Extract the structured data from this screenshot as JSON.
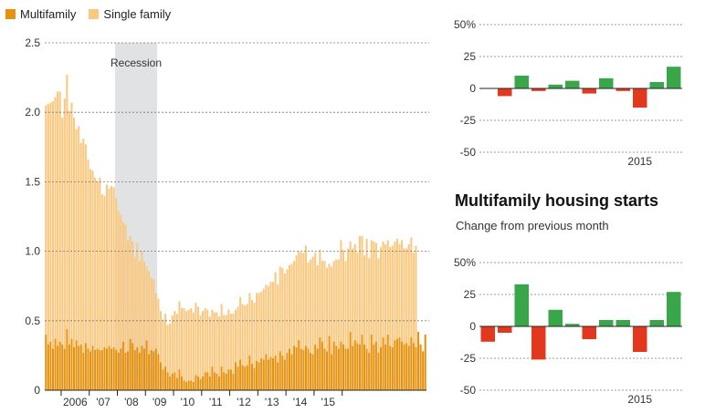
{
  "legend": {
    "multifamily": "Multifamily",
    "single_family": "Single family",
    "multifamily_color": "#E6920E",
    "single_family_color": "#F9C981"
  },
  "recession_label": "Recession",
  "right_panel": {
    "title": "Multifamily housing starts",
    "subtitle": "Change from previous month"
  },
  "colors": {
    "positive": "#3AA64A",
    "negative": "#E2391E",
    "recession": "#E1E2E4"
  },
  "chart_data": [
    {
      "type": "bar",
      "stacked": true,
      "ylabel": "",
      "ylim": [
        0,
        2.5
      ],
      "yticks": [
        0,
        0.5,
        1.0,
        1.5,
        2.0,
        2.5
      ],
      "ytick_labels": [
        "0",
        "0.5",
        "1.0",
        "1.5",
        "2.0",
        "2.5"
      ],
      "xtick_labels": [
        "2006",
        "'07",
        "'08",
        "'09",
        "'10",
        "'11",
        "'12",
        "'13",
        "'14",
        "'15"
      ],
      "start": "2005-06",
      "recession": [
        "2007-12",
        "2009-06"
      ],
      "series": [
        {
          "name": "Multifamily",
          "values": [
            0.4,
            0.33,
            0.35,
            0.3,
            0.37,
            0.32,
            0.35,
            0.33,
            0.3,
            0.44,
            0.33,
            0.37,
            0.31,
            0.36,
            0.32,
            0.33,
            0.27,
            0.34,
            0.3,
            0.28,
            0.32,
            0.29,
            0.3,
            0.29,
            0.29,
            0.31,
            0.3,
            0.32,
            0.3,
            0.31,
            0.29,
            0.27,
            0.3,
            0.35,
            0.27,
            0.28,
            0.37,
            0.34,
            0.29,
            0.31,
            0.27,
            0.32,
            0.3,
            0.36,
            0.26,
            0.29,
            0.28,
            0.3,
            0.26,
            0.2,
            0.15,
            0.17,
            0.13,
            0.1,
            0.12,
            0.13,
            0.09,
            0.15,
            0.1,
            0.07,
            0.06,
            0.07,
            0.07,
            0.06,
            0.11,
            0.1,
            0.08,
            0.1,
            0.13,
            0.13,
            0.1,
            0.17,
            0.13,
            0.12,
            0.1,
            0.17,
            0.13,
            0.12,
            0.15,
            0.15,
            0.12,
            0.2,
            0.17,
            0.22,
            0.18,
            0.17,
            0.18,
            0.25,
            0.19,
            0.16,
            0.21,
            0.2,
            0.23,
            0.22,
            0.26,
            0.22,
            0.24,
            0.23,
            0.25,
            0.2,
            0.28,
            0.25,
            0.22,
            0.27,
            0.3,
            0.26,
            0.32,
            0.31,
            0.36,
            0.3,
            0.29,
            0.32,
            0.3,
            0.27,
            0.26,
            0.33,
            0.3,
            0.38,
            0.35,
            0.3,
            0.28,
            0.39,
            0.26,
            0.35,
            0.32,
            0.3,
            0.35,
            0.33,
            0.3,
            0.3,
            0.42,
            0.32,
            0.36,
            0.34,
            0.33,
            0.4,
            0.33,
            0.3,
            0.27,
            0.4,
            0.33,
            0.35,
            0.27,
            0.31,
            0.38,
            0.33,
            0.4,
            0.32,
            0.31,
            0.36,
            0.37,
            0.38,
            0.35,
            0.33,
            0.34,
            0.32,
            0.38,
            0.34,
            0.31,
            0.42,
            0.33,
            0.28,
            0.4
          ]
        },
        {
          "name": "Single family",
          "values": [
            1.65,
            1.73,
            1.72,
            1.78,
            1.74,
            1.83,
            1.8,
            1.63,
            1.8,
            1.83,
            1.68,
            1.7,
            1.65,
            1.52,
            1.58,
            1.45,
            1.54,
            1.43,
            1.36,
            1.31,
            1.26,
            1.24,
            1.2,
            1.24,
            1.12,
            1.09,
            1.18,
            1.13,
            1.17,
            1.15,
            1.09,
            1.02,
            0.96,
            0.86,
            0.92,
            0.8,
            0.74,
            0.73,
            0.67,
            0.75,
            0.66,
            0.68,
            0.63,
            0.53,
            0.6,
            0.52,
            0.52,
            0.4,
            0.4,
            0.37,
            0.36,
            0.38,
            0.34,
            0.38,
            0.42,
            0.44,
            0.46,
            0.49,
            0.49,
            0.52,
            0.51,
            0.51,
            0.52,
            0.5,
            0.52,
            0.5,
            0.46,
            0.47,
            0.46,
            0.45,
            0.43,
            0.41,
            0.43,
            0.44,
            0.43,
            0.45,
            0.41,
            0.42,
            0.43,
            0.4,
            0.43,
            0.38,
            0.43,
            0.45,
            0.44,
            0.44,
            0.44,
            0.45,
            0.46,
            0.47,
            0.49,
            0.5,
            0.48,
            0.51,
            0.5,
            0.53,
            0.54,
            0.55,
            0.6,
            0.56,
            0.61,
            0.63,
            0.62,
            0.6,
            0.6,
            0.65,
            0.61,
            0.66,
            0.64,
            0.69,
            0.7,
            0.72,
            0.62,
            0.67,
            0.7,
            0.66,
            0.6,
            0.63,
            0.58,
            0.63,
            0.6,
            0.52,
            0.63,
            0.58,
            0.62,
            0.64,
            0.73,
            0.68,
            0.63,
            0.72,
            0.65,
            0.7,
            0.69,
            0.65,
            0.78,
            0.71,
            0.64,
            0.79,
            0.68,
            0.68,
            0.74,
            0.71,
            0.68,
            0.72,
            0.69,
            0.72,
            0.68,
            0.71,
            0.73,
            0.71,
            0.72,
            0.67,
            0.73,
            0.69,
            0.68,
            0.73,
            0.72,
            0.65,
            0.73
          ]
        }
      ]
    },
    {
      "type": "bar",
      "yticks": [
        50,
        25,
        0,
        -25,
        -50
      ],
      "ytick_labels": [
        "50%",
        "25",
        "0",
        "-25",
        "-50"
      ],
      "ylim": [
        -50,
        50
      ],
      "xtick_labels": [
        "2015"
      ],
      "values": [
        -6,
        10,
        -2,
        3,
        6,
        -4,
        8,
        -2,
        -15,
        5,
        17
      ]
    },
    {
      "type": "bar",
      "yticks": [
        50,
        25,
        0,
        -25,
        -50
      ],
      "ytick_labels": [
        "50%",
        "25",
        "0",
        "-25",
        "-50"
      ],
      "ylim": [
        -50,
        50
      ],
      "xtick_labels": [
        "2015"
      ],
      "values": [
        -12,
        -5,
        33,
        -26,
        13,
        2,
        -10,
        5,
        5,
        -20,
        5,
        27
      ]
    }
  ]
}
